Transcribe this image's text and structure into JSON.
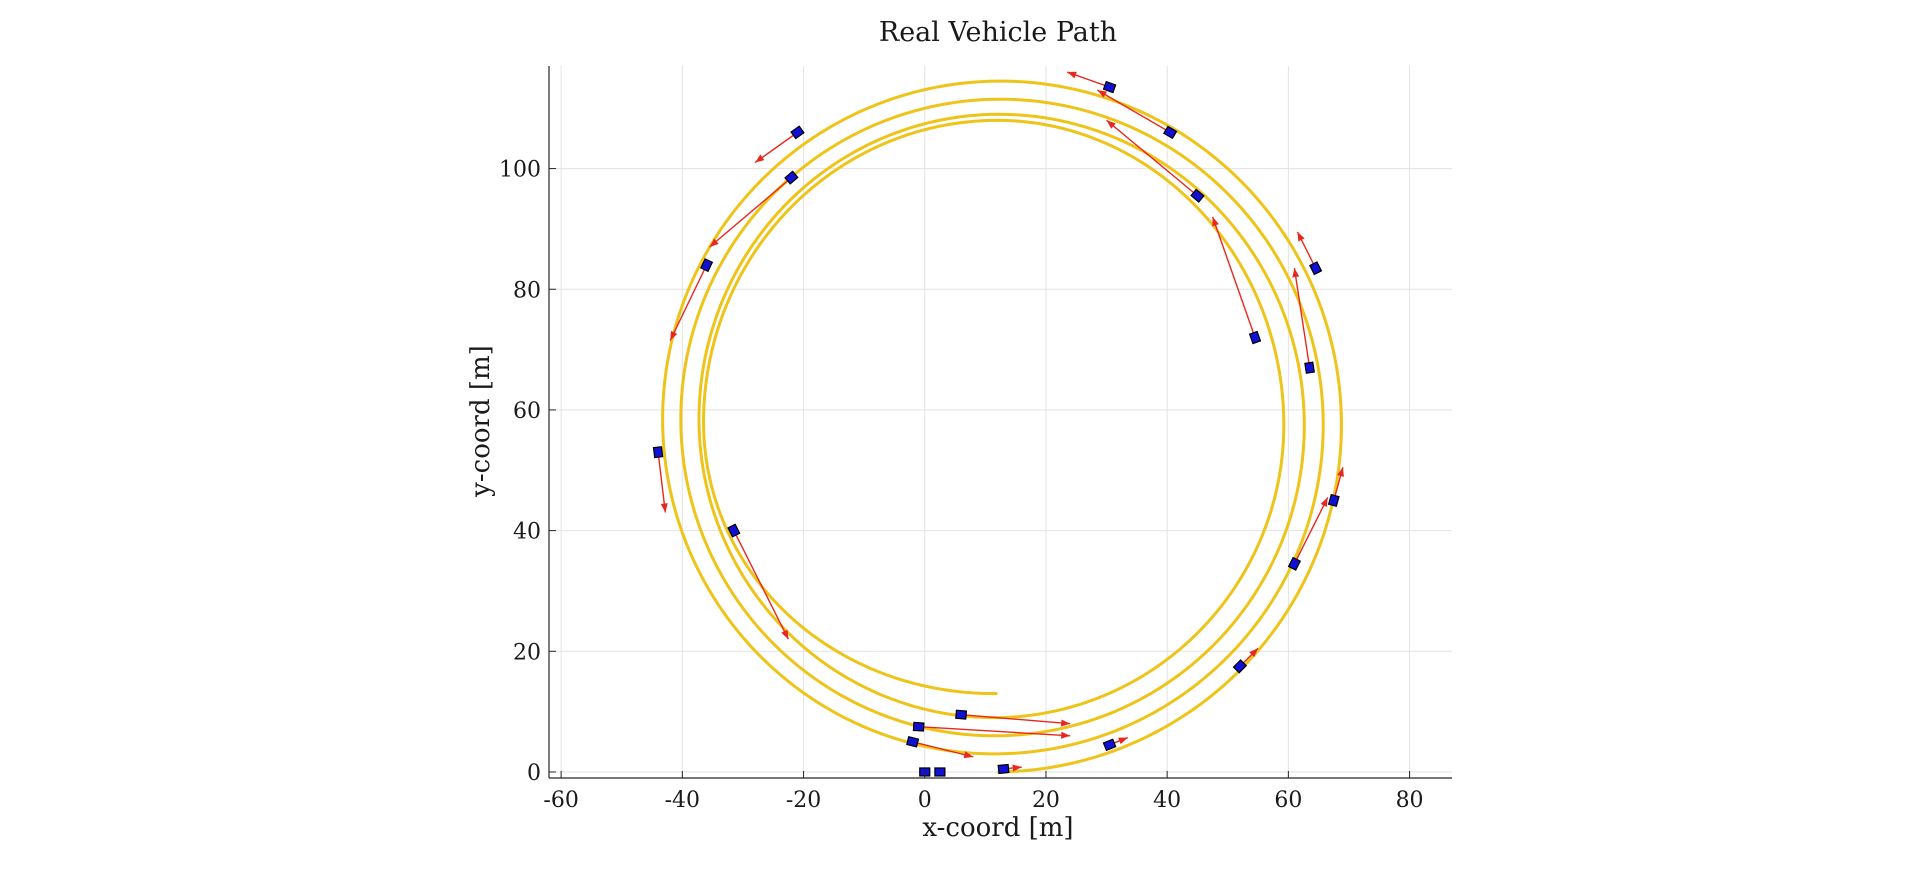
{
  "chart_data": {
    "type": "line",
    "title": "Real Vehicle Path",
    "xlabel": "x-coord [m]",
    "ylabel": "y-coord [m]",
    "xlim": [
      -62,
      87
    ],
    "ylim": [
      -1,
      117
    ],
    "xticks": [
      -60,
      -40,
      -20,
      0,
      20,
      40,
      60,
      80
    ],
    "yticks": [
      0,
      20,
      40,
      60,
      80,
      100
    ],
    "grid": true,
    "colors": {
      "path": "#eec41a",
      "vehicle": "#1111d6",
      "velocity_arrow": "#e8281e"
    },
    "series": [
      {
        "type": "spiral",
        "center": [
          12,
          58
        ],
        "turns": [
          {
            "y_bottom": 0,
            "y_top": 116,
            "x_left": -45.5,
            "x_right": 69.5
          },
          {
            "y_bottom": 3,
            "y_top": 113,
            "x_left": -42.5,
            "x_right": 66.5
          },
          {
            "y_bottom": 6,
            "y_top": 110,
            "x_left": -39.5,
            "x_right": 63.5
          },
          {
            "y_bottom": 9,
            "y_top": 108,
            "x_left": -36.5,
            "x_right": 60.0
          },
          {
            "y_bottom": 13,
            "y_top": 108,
            "x_left": -36.5,
            "x_right": 57.0
          }
        ]
      }
    ],
    "vehicles": [
      {
        "x": 0,
        "y": 0,
        "vx": 0,
        "vy": 0
      },
      {
        "x": 2.5,
        "y": 0,
        "vx": 0,
        "vy": 0
      },
      {
        "x": 13,
        "y": 0.5,
        "vx": 3,
        "vy": 0.3
      },
      {
        "x": 30.5,
        "y": 4.5,
        "vx": 3,
        "vy": 1.2
      },
      {
        "x": 52,
        "y": 17.5,
        "vx": 3,
        "vy": 3
      },
      {
        "x": 61,
        "y": 34.5,
        "vx": 5.5,
        "vy": 11
      },
      {
        "x": 67.5,
        "y": 45,
        "vx": 1.5,
        "vy": 5.5
      },
      {
        "x": 63.5,
        "y": 67,
        "vx": -2.5,
        "vy": 16.5
      },
      {
        "x": 64.5,
        "y": 83.5,
        "vx": -3,
        "vy": 6
      },
      {
        "x": 54.5,
        "y": 72,
        "vx": -7,
        "vy": 20
      },
      {
        "x": 45,
        "y": 95.5,
        "vx": -15,
        "vy": 12.5
      },
      {
        "x": 40.5,
        "y": 106,
        "vx": -12,
        "vy": 7
      },
      {
        "x": 30.5,
        "y": 113.5,
        "vx": -7,
        "vy": 2.5
      },
      {
        "x": -21,
        "y": 106,
        "vx": -7,
        "vy": -5
      },
      {
        "x": -22,
        "y": 98.5,
        "vx": -13.5,
        "vy": -11.5
      },
      {
        "x": -36,
        "y": 84,
        "vx": -6,
        "vy": -12.5
      },
      {
        "x": -44,
        "y": 53,
        "vx": 1.2,
        "vy": -10
      },
      {
        "x": -31.5,
        "y": 40,
        "vx": 9,
        "vy": -18
      },
      {
        "x": -1,
        "y": 7.5,
        "vx": 25,
        "vy": -1.5
      },
      {
        "x": -2,
        "y": 5,
        "vx": 10,
        "vy": -2.5
      },
      {
        "x": 6,
        "y": 9.5,
        "vx": 18,
        "vy": -1.5
      }
    ]
  }
}
